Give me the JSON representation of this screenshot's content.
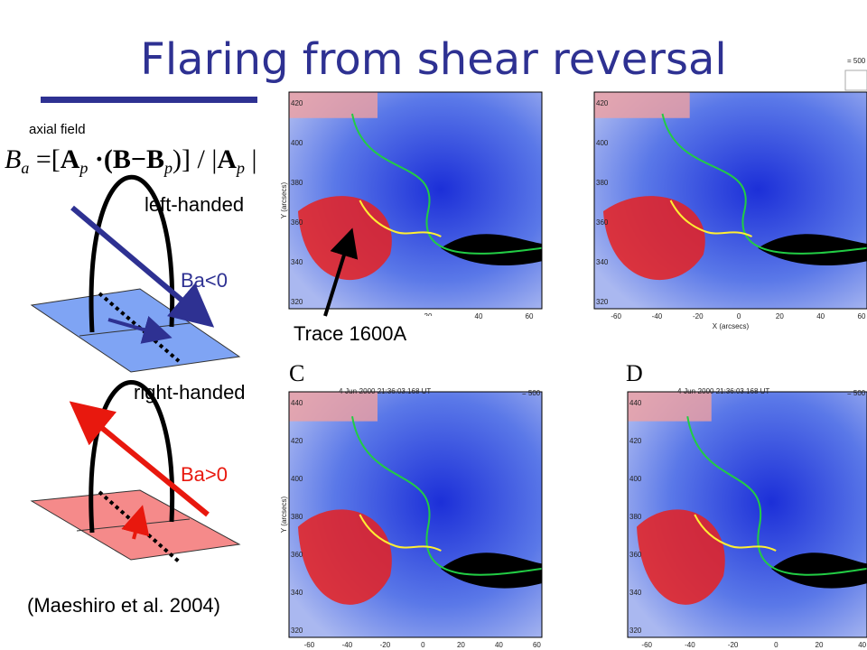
{
  "title": "Flaring from shear reversal",
  "axial_label": "axial field",
  "formula": [
    "B",
    "a",
    " =[",
    "A",
    "p",
    " ·(B−B",
    "p",
    ")] / |",
    "A",
    "p",
    " |"
  ],
  "left_handed": "left-handed",
  "ba_neg": "Ba<0",
  "right_handed": "right-handed",
  "ba_pos": "Ba>0",
  "citation": "(Maeshiro et al. 2004)",
  "trace_label": "Trace 1600A",
  "panels": [
    {
      "label": null,
      "timestamp": null,
      "scale": null,
      "y_axis": "Y (arcsecs)",
      "x_axis": null,
      "yticks": [
        320,
        340,
        360,
        380,
        400,
        420
      ],
      "xticks": [
        20,
        40,
        60
      ]
    },
    {
      "label": null,
      "timestamp": null,
      "scale": "= 500",
      "y_axis": null,
      "x_axis": "X (arcsecs)",
      "yticks": [
        320,
        340,
        360,
        380,
        400,
        420
      ],
      "xticks": [
        -60,
        -40,
        -20,
        0,
        20,
        40,
        60
      ]
    },
    {
      "label": "C",
      "timestamp": "4-Jun-2000 21:36:03.168 UT",
      "scale": "= 500",
      "y_axis": "Y (arcsecs)",
      "x_axis": null,
      "yticks": [
        320,
        340,
        360,
        380,
        400,
        420,
        440
      ],
      "xticks": [
        -60,
        -40,
        -20,
        0,
        20,
        40,
        60
      ]
    },
    {
      "label": "D",
      "timestamp": "4-Jun-2000 21:36:03.168 UT",
      "scale": "= 500",
      "y_axis": null,
      "x_axis": null,
      "yticks": [
        320,
        340,
        360,
        380,
        400,
        420,
        440
      ],
      "xticks": [
        -60,
        -40,
        -20,
        0,
        20,
        40
      ]
    }
  ]
}
